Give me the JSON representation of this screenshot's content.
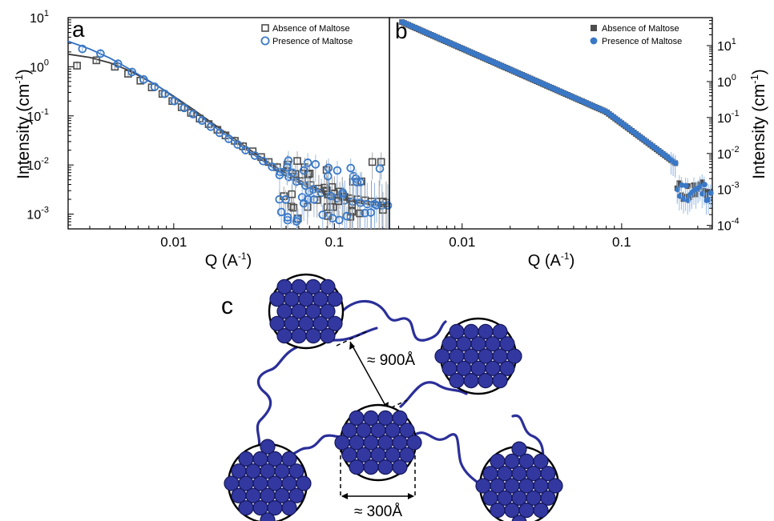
{
  "panels": {
    "a": {
      "letter": "a",
      "ylabel_main": "Intensity (cm",
      "ylabel_sup": "-1",
      "ylabel_end": ")"
    },
    "b": {
      "letter": "b",
      "ylabel_main": "Intensity (cm",
      "ylabel_sup": "-1",
      "ylabel_end": ")"
    },
    "c": {
      "letter": "c",
      "dim_900": "≈ 900Å",
      "dim_300": "≈ 300Å"
    }
  },
  "colors": {
    "absence": "#4d4d4d",
    "presence": "#3a78c6",
    "fit_absence": "#3a3a3a",
    "fit_presence": "#2f6fc4",
    "chain": "#2b2f99",
    "sphere": "#3238a0"
  },
  "chart_data": [
    {
      "type": "scatter",
      "panel": "a",
      "title": "",
      "xlabel": "Q (A-1)",
      "ylabel": "Intensity (cm-1)",
      "x_scale": "log",
      "y_scale": "log",
      "xlim": [
        0.0022,
        0.22
      ],
      "ylim": [
        0.0005,
        10
      ],
      "xticks": [
        {
          "value": 0.01,
          "label": "0.01"
        },
        {
          "value": 0.1,
          "label": "0.1"
        }
      ],
      "yticks": [
        {
          "value": 10,
          "base": "10",
          "exp": "1"
        },
        {
          "value": 1,
          "base": "10",
          "exp": "0"
        },
        {
          "value": 0.1,
          "base": "10",
          "exp": "-1"
        },
        {
          "value": 0.01,
          "base": "10",
          "exp": "-2"
        },
        {
          "value": 0.001,
          "base": "10",
          "exp": "-3"
        }
      ],
      "legend_position": "top-right",
      "series": [
        {
          "name": "Absence of Maltose",
          "marker": "open-square",
          "x": [
            0.0025,
            0.0033,
            0.0043,
            0.0052,
            0.0062,
            0.0073,
            0.0085,
            0.0098,
            0.0112,
            0.0128,
            0.0145,
            0.0165,
            0.0187,
            0.021,
            0.024,
            0.027,
            0.031,
            0.035,
            0.039,
            0.044,
            0.05,
            0.056,
            0.063,
            0.071,
            0.08,
            0.09,
            0.1,
            0.112,
            0.125,
            0.14,
            0.155,
            0.17,
            0.19,
            0.21
          ],
          "y": [
            1.05,
            1.35,
            1.0,
            0.72,
            0.52,
            0.38,
            0.28,
            0.2,
            0.15,
            0.115,
            0.088,
            0.068,
            0.052,
            0.04,
            0.031,
            0.024,
            0.019,
            0.0145,
            0.0115,
            0.009,
            0.0072,
            0.0058,
            0.0047,
            0.0039,
            0.0033,
            0.0029,
            0.0026,
            0.0023,
            0.0021,
            0.002,
            0.0019,
            0.0018,
            0.0018,
            0.0017
          ]
        },
        {
          "name": "Presence of Maltose",
          "marker": "open-circle",
          "x": [
            0.0027,
            0.0035,
            0.0045,
            0.0055,
            0.0065,
            0.0076,
            0.0088,
            0.0101,
            0.0116,
            0.0132,
            0.015,
            0.017,
            0.0193,
            0.022,
            0.025,
            0.028,
            0.032,
            0.036,
            0.041,
            0.046,
            0.052,
            0.058,
            0.066,
            0.074,
            0.083,
            0.093,
            0.104,
            0.116,
            0.13,
            0.145,
            0.16,
            0.178,
            0.198,
            0.215
          ],
          "y": [
            2.3,
            1.85,
            1.15,
            0.78,
            0.55,
            0.39,
            0.28,
            0.2,
            0.145,
            0.108,
            0.08,
            0.06,
            0.045,
            0.034,
            0.026,
            0.02,
            0.0155,
            0.012,
            0.0092,
            0.0072,
            0.0057,
            0.0046,
            0.0038,
            0.0032,
            0.0027,
            0.0024,
            0.0021,
            0.0019,
            0.0018,
            0.0017,
            0.0016,
            0.0016,
            0.0015,
            0.0015
          ]
        }
      ],
      "fits": [
        {
          "x": [
            0.0022,
            0.003,
            0.004,
            0.005,
            0.006,
            0.008,
            0.01,
            0.013,
            0.017,
            0.022,
            0.03,
            0.04,
            0.05,
            0.07,
            0.1,
            0.14,
            0.22
          ],
          "y": [
            1.8,
            1.55,
            1.2,
            0.9,
            0.67,
            0.4,
            0.25,
            0.14,
            0.075,
            0.041,
            0.02,
            0.0105,
            0.0068,
            0.0038,
            0.0025,
            0.0019,
            0.0016
          ]
        },
        {
          "x": [
            0.0022,
            0.003,
            0.004,
            0.005,
            0.006,
            0.008,
            0.01,
            0.013,
            0.017,
            0.022,
            0.03,
            0.04,
            0.05,
            0.07,
            0.1,
            0.14,
            0.22
          ],
          "y": [
            3.3,
            2.3,
            1.5,
            1.0,
            0.7,
            0.4,
            0.24,
            0.13,
            0.068,
            0.037,
            0.018,
            0.0095,
            0.006,
            0.0034,
            0.0022,
            0.0017,
            0.0014
          ]
        }
      ]
    },
    {
      "type": "scatter",
      "panel": "b",
      "title": "",
      "xlabel": "Q (A-1)",
      "ylabel": "Intensity (cm-1)",
      "x_scale": "log",
      "y_scale": "log",
      "xlim": [
        0.0035,
        0.37
      ],
      "ylim": [
        8e-05,
        60
      ],
      "xticks": [
        {
          "value": 0.01,
          "label": "0.01"
        },
        {
          "value": 0.1,
          "label": "0.1"
        }
      ],
      "yticks": [
        {
          "value": 10,
          "base": "10",
          "exp": "1"
        },
        {
          "value": 1,
          "base": "10",
          "exp": "0"
        },
        {
          "value": 0.1,
          "base": "10",
          "exp": "-1"
        },
        {
          "value": 0.01,
          "base": "10",
          "exp": "-2"
        },
        {
          "value": 0.001,
          "base": "10",
          "exp": "-3"
        },
        {
          "value": 0.0001,
          "base": "10",
          "exp": "-4"
        }
      ],
      "legend_position": "top-right",
      "series": [
        {
          "name": "Absence of Maltose",
          "marker": "filled-square"
        },
        {
          "name": "Presence of Maltose",
          "marker": "filled-circle"
        }
      ]
    }
  ]
}
